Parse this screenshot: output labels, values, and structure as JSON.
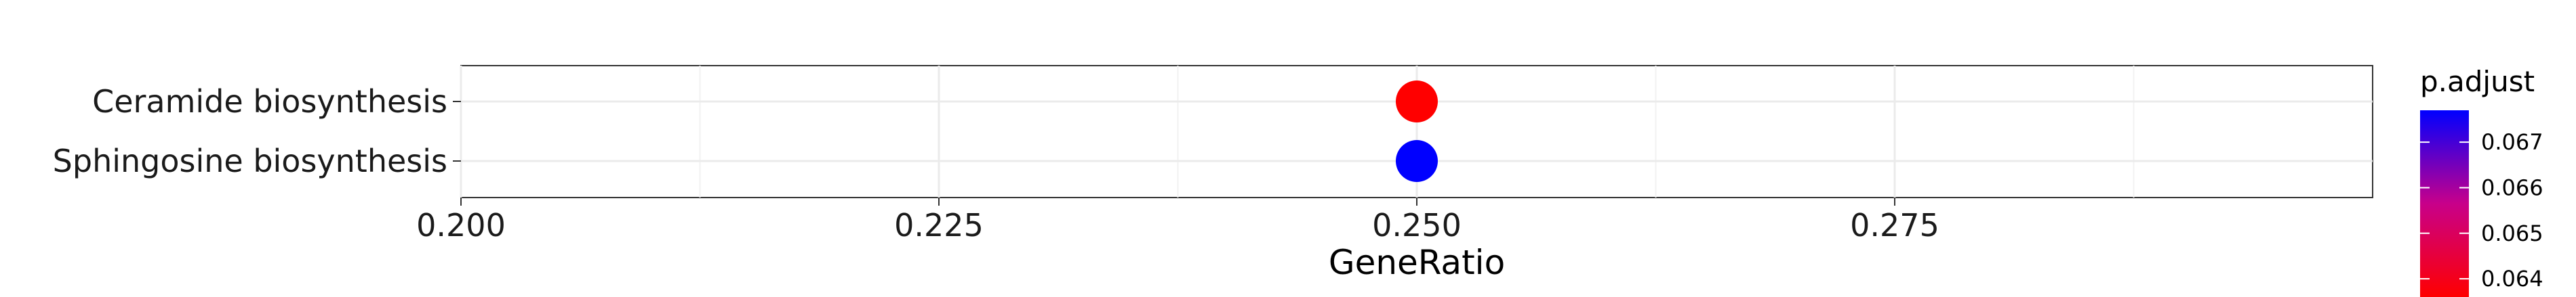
{
  "chart_data": {
    "type": "scatter",
    "title": "",
    "xlabel": "GeneRatio",
    "ylabel": "",
    "xlim": [
      0.2,
      0.3
    ],
    "x_ticks": [
      "0.200",
      "0.225",
      "0.250",
      "0.275"
    ],
    "x_tick_values": [
      0.2,
      0.225,
      0.25,
      0.275
    ],
    "grid": true,
    "categories": [
      "Ceramide biosynthesis",
      "Sphingosine biosynthesis"
    ],
    "points": [
      {
        "category": "Ceramide biosynthesis",
        "x": 0.25,
        "p_adjust": 0.0636,
        "color": "#ff0000"
      },
      {
        "category": "Sphingosine biosynthesis",
        "x": 0.25,
        "p_adjust": 0.0677,
        "color": "#0000ff"
      }
    ],
    "legend": {
      "title": "p.adjust",
      "placement": "right",
      "ticks": [
        "0.067",
        "0.066",
        "0.065",
        "0.064"
      ],
      "tick_values": [
        0.067,
        0.066,
        0.065,
        0.064
      ],
      "range": [
        0.0636,
        0.0677
      ],
      "color_low": "#ff0000",
      "color_high": "#0000ff"
    }
  }
}
